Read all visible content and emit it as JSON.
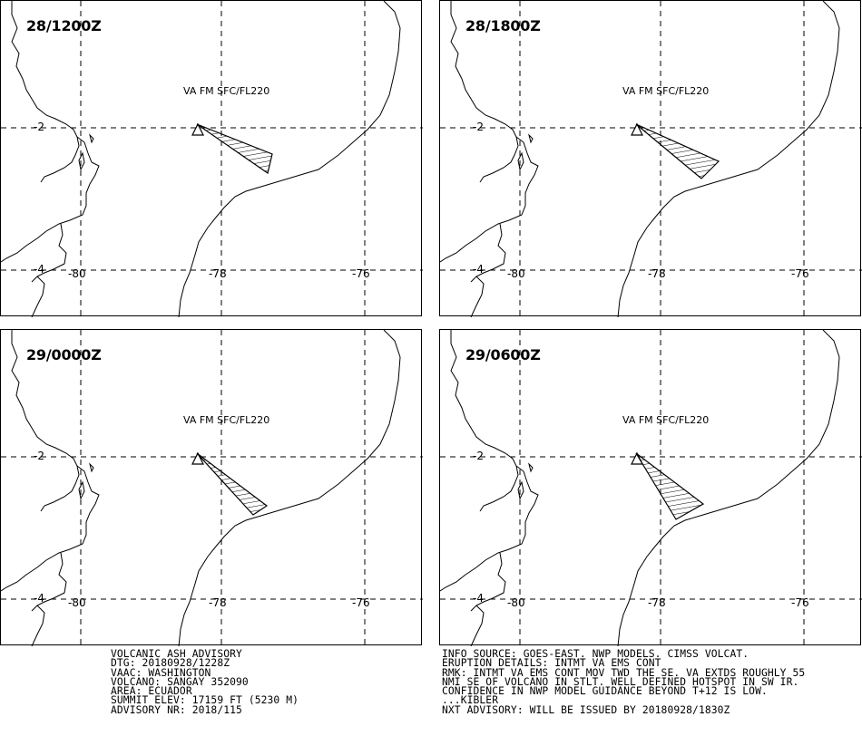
{
  "panels": [
    {
      "time": "28/1200Z",
      "level": "VA FM SFC/FL220"
    },
    {
      "time": "28/1800Z",
      "level": "VA FM SFC/FL220"
    },
    {
      "time": "29/0000Z",
      "level": "VA FM SFC/FL220"
    },
    {
      "time": "29/0600Z",
      "level": "VA FM SFC/FL220"
    }
  ],
  "axis_labels": {
    "lat_m2": "-2",
    "lat_m4": "-4",
    "lon_m80": "-80",
    "lon_m78": "-78",
    "lon_m76": "-76"
  },
  "volcano_marker": "triangle-icon",
  "advisory": {
    "left_lines": [
      "VOLCANIC ASH ADVISORY",
      "DTG: 20180928/1228Z",
      "VAAC: WASHINGTON",
      "VOLCANO: SANGAY 352090",
      "AREA: ECUADOR",
      "SUMMIT ELEV: 17159 FT (5230 M)",
      "ADVISORY NR: 2018/115"
    ],
    "right_lines": [
      "INFO SOURCE: GOES-EAST. NWP MODELS. CIMSS VOLCAT.",
      "ERUPTION DETAILS: INTMT VA EMS CONT",
      "RMK: INTMT VA EMS CONT MOV TWD THE SE. VA EXTDS ROUGHLY 55",
      "NMI SE OF VOLCANO IN STLT. WELL DEFINED HOTSPOT IN SW IR.",
      "CONFIDENCE IN NWP MODEL GUIDANCE BEYOND T+12 IS LOW.",
      "...KIBLER",
      "NXT ADVISORY: WILL BE ISSUED BY 20180928/1830Z"
    ]
  }
}
